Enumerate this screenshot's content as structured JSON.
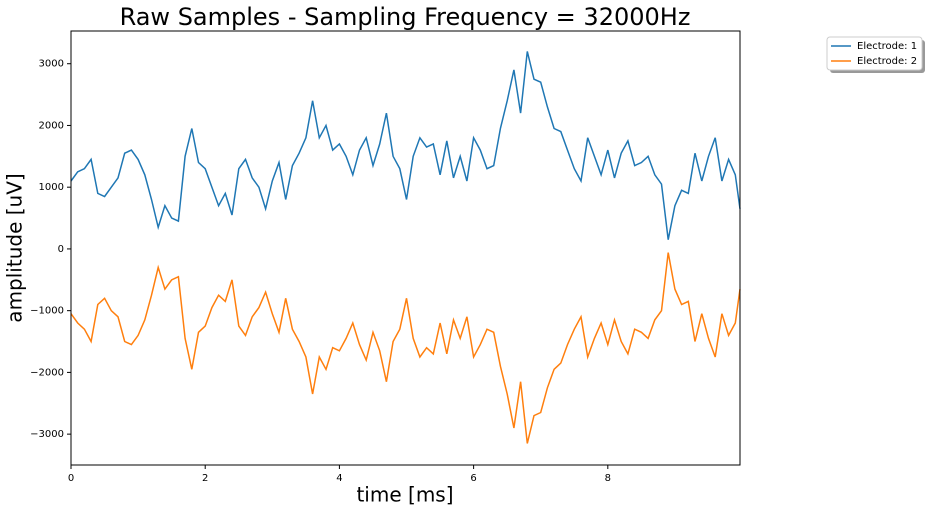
{
  "chart_data": {
    "type": "line",
    "title": "Raw Samples - Sampling Frequency = 32000Hz",
    "x_label": "time [ms]",
    "y_label": "amplitude [uV]",
    "x": [
      0,
      0.1,
      0.2,
      0.3,
      0.4,
      0.5,
      0.6,
      0.7,
      0.8,
      0.9,
      1.0,
      1.1,
      1.2,
      1.3,
      1.4,
      1.5,
      1.6,
      1.7,
      1.8,
      1.9,
      2.0,
      2.1,
      2.2,
      2.3,
      2.4,
      2.5,
      2.6,
      2.7,
      2.8,
      2.9,
      3.0,
      3.1,
      3.2,
      3.3,
      3.4,
      3.5,
      3.6,
      3.7,
      3.8,
      3.9,
      4.0,
      4.1,
      4.2,
      4.3,
      4.4,
      4.5,
      4.6,
      4.7,
      4.8,
      4.9,
      5.0,
      5.1,
      5.2,
      5.3,
      5.4,
      5.5,
      5.6,
      5.7,
      5.8,
      5.9,
      6.0,
      6.1,
      6.2,
      6.3,
      6.4,
      6.5,
      6.6,
      6.7,
      6.8,
      6.9,
      7.0,
      7.1,
      7.2,
      7.3,
      7.4,
      7.5,
      7.6,
      7.7,
      7.8,
      7.9,
      8.0,
      8.1,
      8.2,
      8.3,
      8.4,
      8.5,
      8.6,
      8.7,
      8.8,
      8.9,
      9.0,
      9.1,
      9.2,
      9.3,
      9.4,
      9.5,
      9.6,
      9.7,
      9.8,
      9.9,
      9.97
    ],
    "series": [
      {
        "name": "Electrode: 1",
        "color": "#1f77b4",
        "values": [
          1100,
          1250,
          1300,
          1450,
          900,
          850,
          1000,
          1150,
          1550,
          1600,
          1450,
          1200,
          800,
          350,
          700,
          500,
          450,
          1500,
          1950,
          1400,
          1300,
          1000,
          700,
          900,
          550,
          1300,
          1450,
          1150,
          1000,
          650,
          1100,
          1400,
          800,
          1350,
          1550,
          1800,
          2400,
          1800,
          2000,
          1600,
          1700,
          1500,
          1200,
          1600,
          1800,
          1350,
          1700,
          2200,
          1500,
          1300,
          800,
          1500,
          1800,
          1650,
          1700,
          1200,
          1750,
          1150,
          1500,
          1100,
          1800,
          1600,
          1300,
          1350,
          1950,
          2400,
          2900,
          2200,
          3200,
          2750,
          2700,
          2300,
          1950,
          1900,
          1600,
          1300,
          1100,
          1800,
          1500,
          1200,
          1600,
          1150,
          1550,
          1750,
          1350,
          1400,
          1500,
          1200,
          1050,
          150,
          700,
          950,
          900,
          1550,
          1100,
          1500,
          1800,
          1100,
          1450,
          1200,
          650
        ]
      },
      {
        "name": "Electrode: 2",
        "color": "#ff7f0e",
        "values": [
          -1050,
          -1200,
          -1300,
          -1500,
          -900,
          -800,
          -1000,
          -1100,
          -1500,
          -1550,
          -1400,
          -1150,
          -750,
          -300,
          -650,
          -500,
          -450,
          -1450,
          -1950,
          -1350,
          -1250,
          -950,
          -750,
          -850,
          -500,
          -1250,
          -1400,
          -1100,
          -950,
          -700,
          -1050,
          -1350,
          -800,
          -1300,
          -1500,
          -1750,
          -2350,
          -1750,
          -1950,
          -1600,
          -1650,
          -1450,
          -1200,
          -1550,
          -1800,
          -1350,
          -1650,
          -2150,
          -1500,
          -1300,
          -800,
          -1450,
          -1750,
          -1600,
          -1700,
          -1200,
          -1700,
          -1150,
          -1450,
          -1100,
          -1750,
          -1550,
          -1300,
          -1350,
          -1900,
          -2350,
          -2900,
          -2150,
          -3150,
          -2700,
          -2650,
          -2250,
          -1950,
          -1850,
          -1550,
          -1300,
          -1100,
          -1750,
          -1450,
          -1200,
          -1550,
          -1150,
          -1500,
          -1700,
          -1300,
          -1350,
          -1450,
          -1150,
          -1000,
          -60,
          -650,
          -900,
          -850,
          -1500,
          -1050,
          -1450,
          -1750,
          -1050,
          -1400,
          -1200,
          -650
        ]
      }
    ],
    "xlim": [
      0,
      9.97
    ],
    "ylim": [
      -3500,
      3530
    ],
    "xticks": [
      0,
      2,
      4,
      6,
      8
    ],
    "yticks": [
      {
        "value": -3000,
        "label": "−3000"
      },
      {
        "value": -2000,
        "label": "−2000"
      },
      {
        "value": -1000,
        "label": "−1000"
      },
      0,
      1000,
      2000,
      3000
    ],
    "legend_loc": "upper right"
  }
}
